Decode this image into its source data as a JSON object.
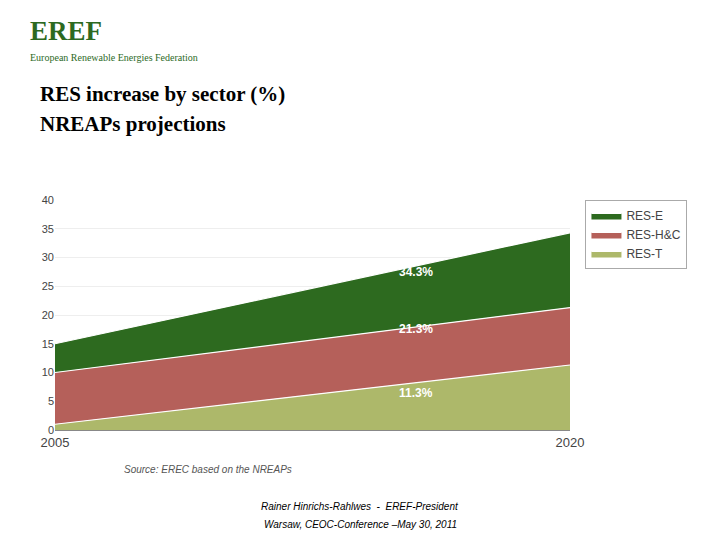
{
  "chart_data": {
    "type": "area",
    "stacked": true,
    "title": "RES increase by sector (%)",
    "subtitle": "NREAPs projections",
    "brand": {
      "text": "EREF",
      "subtitle": "European Renewable Energies Federation",
      "color": "#2d6a1f"
    },
    "x": [
      2005,
      2020
    ],
    "series": [
      {
        "name": "RES-T",
        "color": "#adb86a",
        "values": [
          1.0,
          11.3
        ]
      },
      {
        "name": "RES-H&C",
        "color": "#b5605a",
        "values": [
          9.0,
          10.0
        ]
      },
      {
        "name": "RES-E",
        "color": "#2d6a1f",
        "values": [
          5.0,
          13.0
        ]
      }
    ],
    "xlim": [
      2005,
      2020
    ],
    "xticks": [
      2005,
      2020
    ],
    "ylim": [
      0,
      40
    ],
    "yticks": [
      0,
      5,
      10,
      15,
      20,
      25,
      30,
      35,
      40
    ],
    "grid": true,
    "legend": "upper right",
    "annotations": [
      {
        "text": "34.3%",
        "x": 2015.5,
        "y": 27.5,
        "color": "white"
      },
      {
        "text": "21.3%",
        "x": 2015.5,
        "y": 17.5,
        "color": "white"
      },
      {
        "text": "11.3%",
        "x": 2015.5,
        "y": 6.5,
        "color": "white"
      }
    ],
    "source": "Source: EREC based on the NREAPs",
    "footer": [
      "Rainer Hinrichs-Rahlwes  -  EREF-President",
      "Warsaw, CEOC-Conference –May 30, 2011"
    ]
  }
}
